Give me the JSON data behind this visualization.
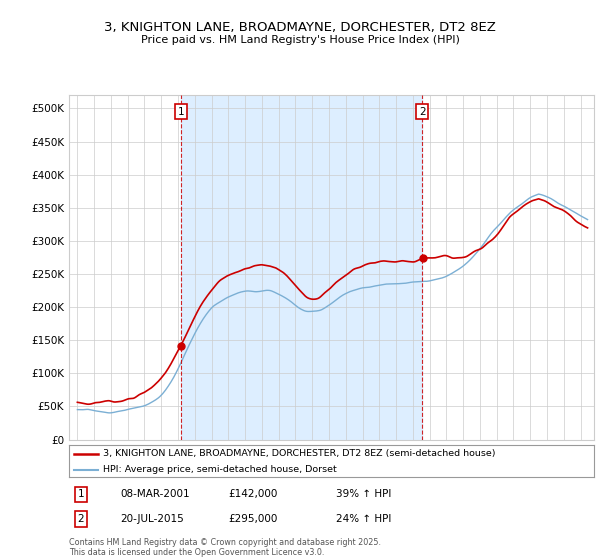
{
  "title": "3, KNIGHTON LANE, BROADMAYNE, DORCHESTER, DT2 8EZ",
  "subtitle": "Price paid vs. HM Land Registry's House Price Index (HPI)",
  "sale1_label": "08-MAR-2001",
  "sale1_price": 142000,
  "sale1_hpi": "39% ↑ HPI",
  "sale2_label": "20-JUL-2015",
  "sale2_price": 295000,
  "sale2_hpi": "24% ↑ HPI",
  "property_label": "3, KNIGHTON LANE, BROADMAYNE, DORCHESTER, DT2 8EZ (semi-detached house)",
  "hpi_label": "HPI: Average price, semi-detached house, Dorset",
  "red_color": "#cc0000",
  "blue_color": "#7bafd4",
  "shade_color": "#ddeeff",
  "footer": "Contains HM Land Registry data © Crown copyright and database right 2025.\nThis data is licensed under the Open Government Licence v3.0.",
  "ylim": [
    0,
    520000
  ],
  "yticks": [
    0,
    50000,
    100000,
    150000,
    200000,
    250000,
    300000,
    350000,
    400000,
    450000,
    500000
  ],
  "sale1_x": 2001.18,
  "sale2_x": 2015.55
}
